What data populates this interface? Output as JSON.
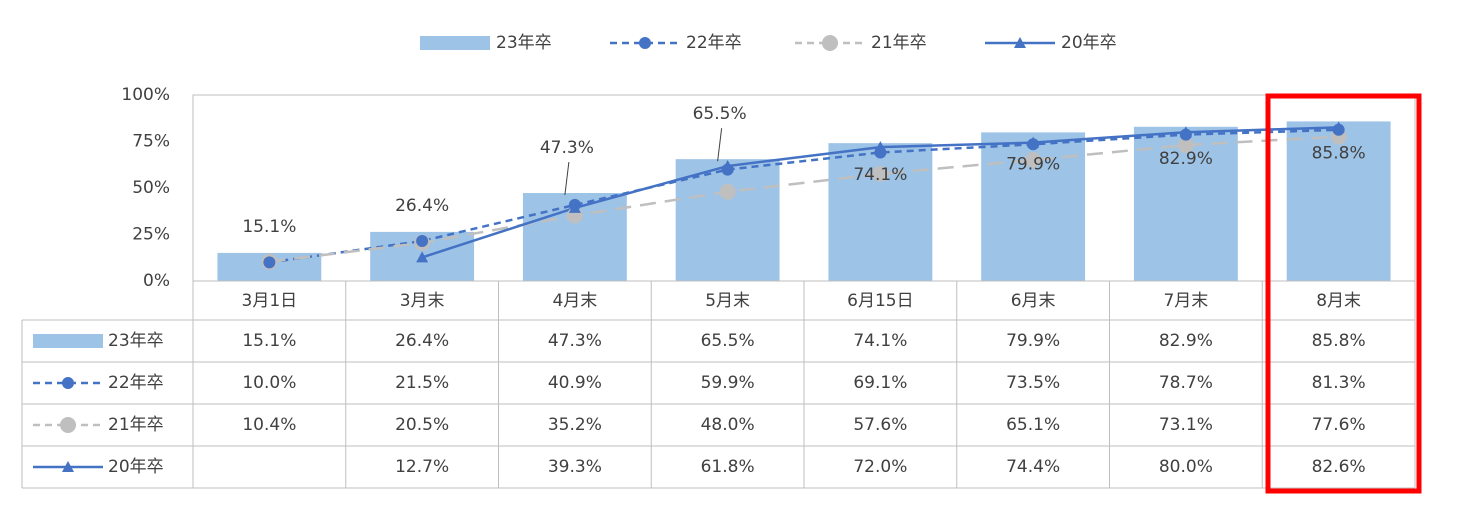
{
  "chart_data": {
    "type": "combo",
    "categories": [
      "3月1日",
      "3月末",
      "4月末",
      "5月末",
      "6月15日",
      "6月末",
      "7月末",
      "8月末"
    ],
    "ylim": [
      0,
      100
    ],
    "yticks": [
      {
        "value": 0,
        "label": "0%"
      },
      {
        "value": 25,
        "label": "25%"
      },
      {
        "value": 50,
        "label": "50%"
      },
      {
        "value": 75,
        "label": "75%"
      },
      {
        "value": 100,
        "label": "100%"
      }
    ],
    "grid": false,
    "legend": "top",
    "series": [
      {
        "name": "23年卒",
        "type": "bar",
        "color": "#9dc3e6",
        "values": [
          15.1,
          26.4,
          47.3,
          65.5,
          74.1,
          79.9,
          82.9,
          85.8
        ],
        "value_labels": [
          "15.1%",
          "26.4%",
          "47.3%",
          "65.5%",
          "74.1%",
          "79.9%",
          "82.9%",
          "85.8%"
        ]
      },
      {
        "name": "22年卒",
        "type": "line",
        "color": "#4472c4",
        "line_style": "dashed",
        "marker": "circle",
        "values": [
          10.0,
          21.5,
          40.9,
          59.9,
          69.1,
          73.5,
          78.7,
          81.3
        ],
        "value_labels": [
          "10.0%",
          "21.5%",
          "40.9%",
          "59.9%",
          "69.1%",
          "73.5%",
          "78.7%",
          "81.3%"
        ]
      },
      {
        "name": "21年卒",
        "type": "line",
        "color": "#bfbfbf",
        "line_style": "dashed",
        "marker": "circle",
        "values": [
          10.4,
          20.5,
          35.2,
          48.0,
          57.6,
          65.1,
          73.1,
          77.6
        ],
        "value_labels": [
          "10.4%",
          "20.5%",
          "35.2%",
          "48.0%",
          "57.6%",
          "65.1%",
          "73.1%",
          "77.6%"
        ]
      },
      {
        "name": "20年卒",
        "type": "line",
        "color": "#4472c4",
        "line_style": "solid",
        "marker": "triangle",
        "values": [
          null,
          12.7,
          39.3,
          61.8,
          72.0,
          74.4,
          80.0,
          82.6
        ],
        "value_labels": [
          null,
          "12.7%",
          "39.3%",
          "61.8%",
          "72.0%",
          "74.4%",
          "80.0%",
          "82.6%"
        ]
      }
    ]
  }
}
